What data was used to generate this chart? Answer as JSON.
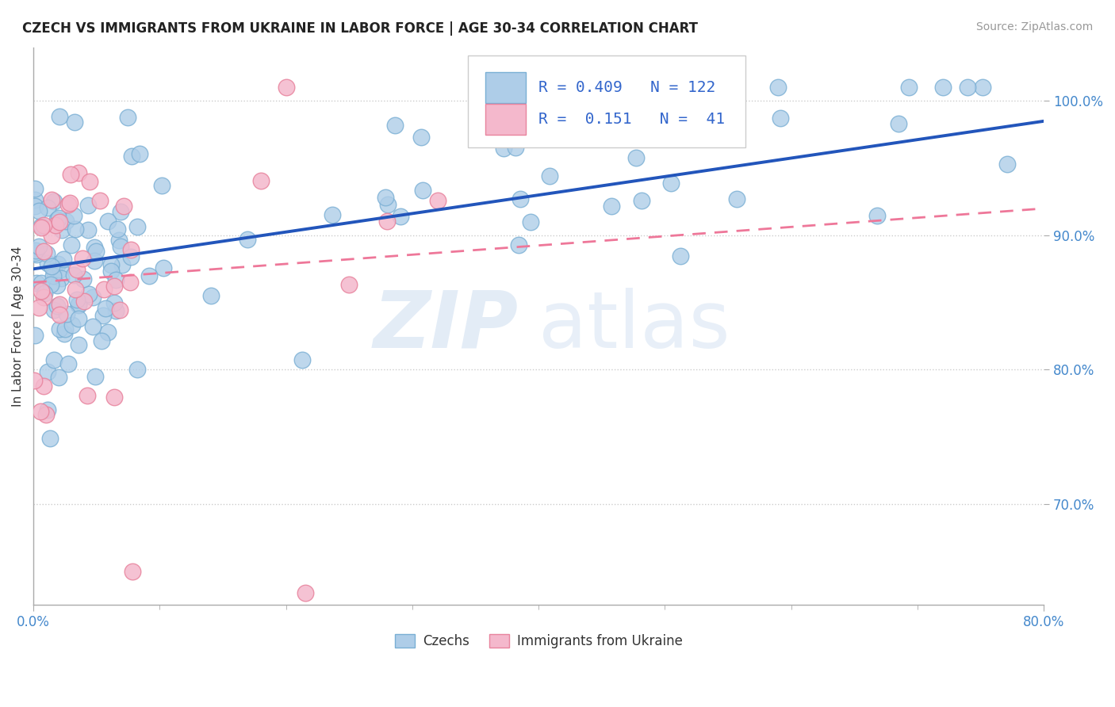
{
  "title": "CZECH VS IMMIGRANTS FROM UKRAINE IN LABOR FORCE | AGE 30-34 CORRELATION CHART",
  "source": "Source: ZipAtlas.com",
  "ylabel": "In Labor Force | Age 30-34",
  "xmin": 0.0,
  "xmax": 0.8,
  "ymin": 0.625,
  "ymax": 1.04,
  "R_czech": 0.409,
  "N_czech": 122,
  "R_ukraine": 0.151,
  "N_ukraine": 41,
  "czech_color": "#aecde8",
  "czech_edge_color": "#7aafd4",
  "ukraine_color": "#f4b8cc",
  "ukraine_edge_color": "#e8849e",
  "trendline_czech_color": "#2255bb",
  "trendline_ukraine_color": "#ee7799",
  "trendline_ukraine_style": "--",
  "legend_label_czech": "Czechs",
  "legend_label_ukraine": "Immigrants from Ukraine",
  "watermark_zip": "ZIP",
  "watermark_atlas": "atlas",
  "background_color": "#ffffff",
  "grid_color": "#cccccc",
  "ytick_values": [
    0.7,
    0.8,
    0.9,
    1.0
  ],
  "dot_size": 220
}
